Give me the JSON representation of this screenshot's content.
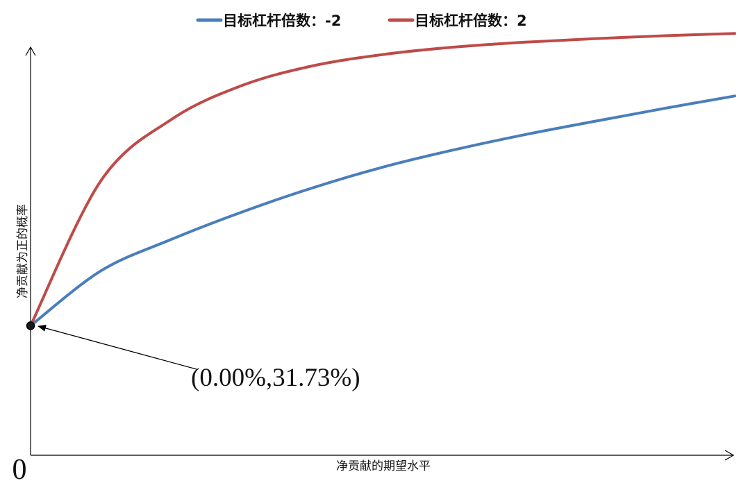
{
  "chart_data": {
    "type": "line",
    "title": "",
    "xlabel": "净贡献的期望水平",
    "ylabel": "净贡献为正的概率",
    "origin_label": "0",
    "xlim": [
      0,
      1
    ],
    "ylim": [
      0,
      1
    ],
    "grid": false,
    "legend_position": "top-center",
    "series": [
      {
        "name": "目标杠杆倍数：-2",
        "color": "#4a7ebb",
        "x": [
          0,
          0.1,
          0.2,
          0.3,
          0.4,
          0.5,
          0.6,
          0.7,
          0.8,
          0.9,
          1.0
        ],
        "y": [
          0.3173,
          0.452,
          0.529,
          0.596,
          0.655,
          0.706,
          0.748,
          0.785,
          0.818,
          0.85,
          0.8804
        ]
      },
      {
        "name": "目标杠杆倍数：2",
        "color": "#be4b48",
        "x": [
          0,
          0.1,
          0.2,
          0.3,
          0.4,
          0.5,
          0.6,
          0.7,
          0.8,
          0.9,
          1.0
        ],
        "y": [
          0.3173,
          0.673,
          0.823,
          0.906,
          0.954,
          0.982,
          1.0,
          1.012,
          1.021,
          1.028,
          1.0336
        ]
      }
    ],
    "annotation": {
      "text": "(0.00%,31.73%)",
      "x": 0,
      "y": 0.3173
    }
  }
}
